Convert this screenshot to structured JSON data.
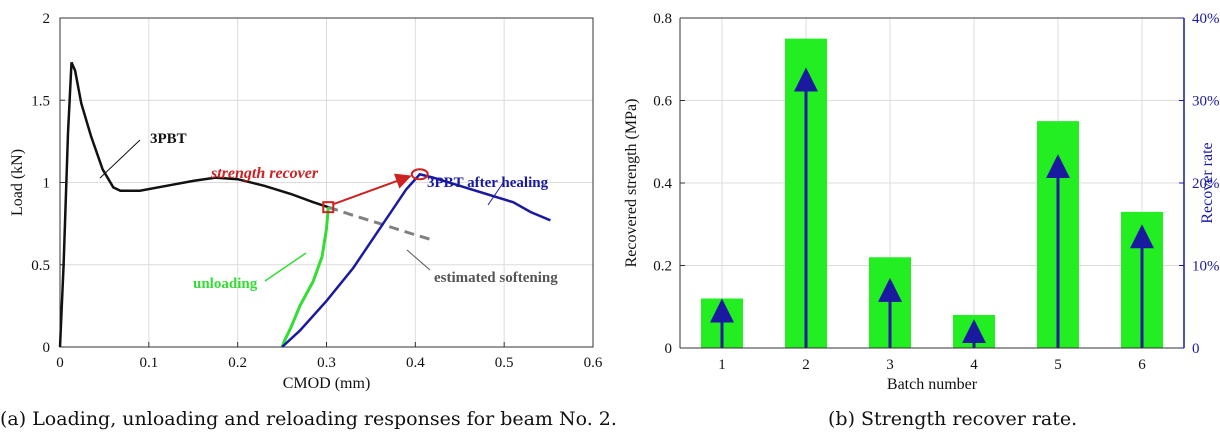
{
  "chart_data": [
    {
      "type": "line",
      "caption": "(a) Loading, unloading and reloading responses for beam No. 2.",
      "xlabel": "CMOD (mm)",
      "ylabel": "Load (kN)",
      "xlim": [
        0,
        0.6
      ],
      "ylim": [
        0,
        2
      ],
      "xticks": [
        "0",
        "0.1",
        "0.2",
        "0.3",
        "0.4",
        "0.5",
        "0.6"
      ],
      "yticks": [
        "0",
        "0.5",
        "1",
        "1.5",
        "2"
      ],
      "grid": true,
      "colors": {
        "3PBT": "#111111",
        "unloading": "#33dd33",
        "after": "#1a1aa0",
        "softening": "#808080",
        "recover": "#cc2222"
      },
      "series": [
        {
          "name": "3PBT",
          "points": [
            [
              0,
              0
            ],
            [
              0.004,
              0.5
            ],
            [
              0.009,
              1.3
            ],
            [
              0.013,
              1.73
            ],
            [
              0.017,
              1.68
            ],
            [
              0.024,
              1.48
            ],
            [
              0.035,
              1.28
            ],
            [
              0.048,
              1.08
            ],
            [
              0.06,
              0.97
            ],
            [
              0.068,
              0.95
            ],
            [
              0.09,
              0.95
            ],
            [
              0.12,
              0.98
            ],
            [
              0.15,
              1.01
            ],
            [
              0.175,
              1.03
            ],
            [
              0.2,
              1.02
            ],
            [
              0.23,
              0.98
            ],
            [
              0.26,
              0.93
            ],
            [
              0.285,
              0.88
            ],
            [
              0.302,
              0.85
            ]
          ]
        },
        {
          "name": "unloading",
          "points": [
            [
              0.302,
              0.85
            ],
            [
              0.3,
              0.72
            ],
            [
              0.295,
              0.55
            ],
            [
              0.285,
              0.4
            ],
            [
              0.27,
              0.25
            ],
            [
              0.26,
              0.12
            ],
            [
              0.253,
              0.04
            ],
            [
              0.25,
              0
            ]
          ]
        },
        {
          "name": "3PBT after healing",
          "points": [
            [
              0.25,
              0
            ],
            [
              0.27,
              0.1
            ],
            [
              0.3,
              0.28
            ],
            [
              0.33,
              0.48
            ],
            [
              0.36,
              0.72
            ],
            [
              0.39,
              0.96
            ],
            [
              0.405,
              1.05
            ],
            [
              0.42,
              1.03
            ],
            [
              0.45,
              0.98
            ],
            [
              0.48,
              0.93
            ],
            [
              0.51,
              0.88
            ],
            [
              0.53,
              0.82
            ],
            [
              0.552,
              0.77
            ]
          ]
        },
        {
          "name": "estimated softening",
          "points": [
            [
              0.302,
              0.85
            ],
            [
              0.33,
              0.8
            ],
            [
              0.36,
              0.75
            ],
            [
              0.395,
              0.69
            ],
            [
              0.42,
              0.65
            ]
          ]
        }
      ],
      "markers": {
        "square": [
          0.302,
          0.85
        ],
        "circle": [
          0.405,
          1.05
        ]
      },
      "labels": {
        "pbt": "3PBT",
        "strength_recover": "strength recover",
        "after_healing": "3PBT after healing",
        "unloading": "unloading",
        "estimated_softening": "estimated softening"
      }
    },
    {
      "type": "bar",
      "caption": "(b) Strength recover rate.",
      "xlabel": "Batch number",
      "ylabel": "Recovered strength (MPa)",
      "y2label": "Recover rate",
      "categories": [
        "1",
        "2",
        "3",
        "4",
        "5",
        "6"
      ],
      "ylim": [
        0,
        0.8
      ],
      "y2lim": [
        0,
        0.4
      ],
      "yticks": [
        "0",
        "0.2",
        "0.4",
        "0.6",
        "0.8"
      ],
      "y2ticks": [
        "0",
        "10%",
        "20%",
        "30%",
        "40%"
      ],
      "grid": true,
      "colors": {
        "bar": "#22ee22",
        "arrow": "#1a1aa0",
        "right_axis": "#1a1aa0"
      },
      "series": [
        {
          "name": "Recovered strength (MPa)",
          "values": [
            0.12,
            0.75,
            0.22,
            0.08,
            0.55,
            0.33
          ]
        },
        {
          "name": "Recover rate",
          "values": [
            0.06,
            0.34,
            0.085,
            0.035,
            0.235,
            0.15
          ]
        }
      ]
    }
  ]
}
